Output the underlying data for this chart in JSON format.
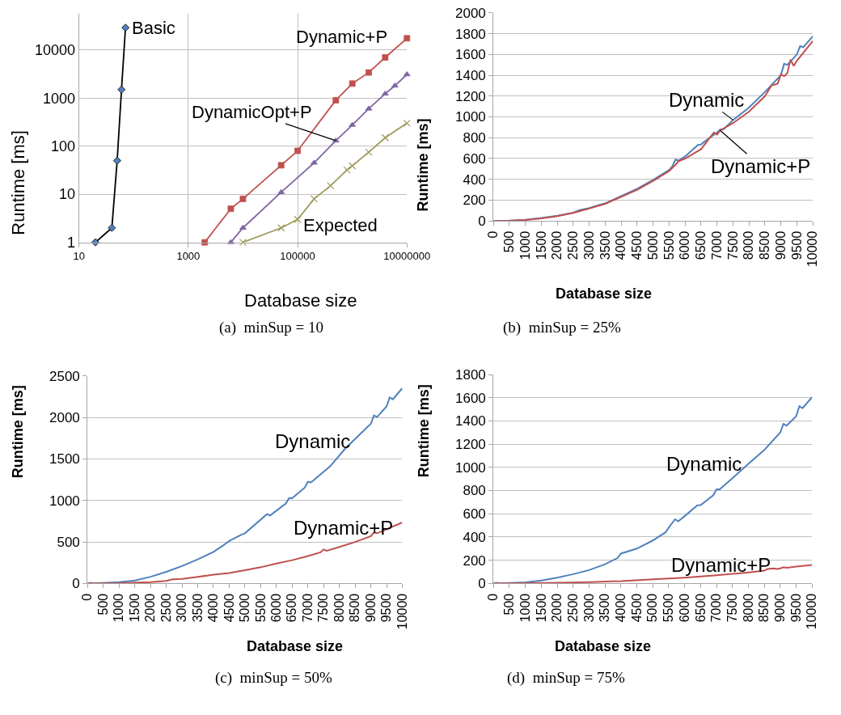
{
  "chart_data": [
    {
      "type": "line",
      "xlabel": "Database size",
      "ylabel": "Runtime [ms]",
      "log": "xy",
      "xlim": [
        10,
        10000000
      ],
      "ylim": [
        1,
        57000
      ],
      "xticks": [
        10,
        1000,
        100000,
        10000000
      ],
      "yticks": [
        1,
        10,
        100,
        1000,
        10000
      ],
      "grid": true,
      "legend": false,
      "annotations": [
        "(a)  minSup = 10"
      ],
      "series": [
        {
          "name": "Basic",
          "color": "#000000",
          "marker": "diamond",
          "x": [
            20,
            40,
            50,
            60,
            71
          ],
          "values": [
            1,
            2,
            50,
            1500,
            29000
          ]
        },
        {
          "name": "Dynamic+P",
          "color": "#c0504d",
          "marker": "square",
          "x": [
            2000,
            6000,
            10000,
            50000,
            100000,
            500000,
            1000000,
            2000000,
            4000000,
            10000000
          ],
          "values": [
            1,
            5,
            8,
            40,
            80,
            900,
            2000,
            3400,
            7000,
            17500
          ]
        },
        {
          "name": "DynamicOpt+P",
          "color": "#8064a2",
          "marker": "triangle",
          "x": [
            6000,
            10000,
            50000,
            200000,
            500000,
            1000000,
            2000000,
            4000000,
            6000000,
            10000000
          ],
          "values": [
            1,
            2,
            11,
            45,
            130,
            275,
            600,
            1230,
            1800,
            3100
          ]
        },
        {
          "name": "Expected",
          "color": "#a0995a",
          "marker": "cross",
          "x": [
            10000,
            50000,
            100000,
            200000,
            400000,
            800000,
            1000000,
            2000000,
            4000000,
            10000000
          ],
          "values": [
            1,
            2,
            3,
            8,
            15,
            32,
            39,
            75,
            150,
            300
          ]
        }
      ]
    },
    {
      "type": "line",
      "xlabel": "Database size",
      "ylabel": "Runtime [ms]",
      "xlim": [
        0,
        10000
      ],
      "ylim": [
        0,
        2000
      ],
      "xticks": [
        0,
        500,
        1000,
        1500,
        2000,
        2500,
        3000,
        3500,
        4000,
        4500,
        5000,
        5500,
        6000,
        6500,
        7000,
        7500,
        8000,
        8500,
        9000,
        9500,
        10000
      ],
      "yticks": [
        0,
        200,
        400,
        600,
        800,
        1000,
        1200,
        1400,
        1600,
        1800,
        2000
      ],
      "grid": "y",
      "legend": false,
      "annotations": [
        "(b)  minSup = 25%"
      ],
      "series": [
        {
          "name": "Dynamic",
          "color": "#4f81bd",
          "x": [
            0,
            500,
            1000,
            1500,
            2000,
            2500,
            2700,
            3000,
            3500,
            4000,
            4500,
            5000,
            5500,
            5600,
            5700,
            5800,
            6000,
            6400,
            6500,
            6600,
            7000,
            7100,
            7200,
            7500,
            8000,
            8500,
            9000,
            9100,
            9200,
            9500,
            9600,
            9700,
            10000
          ],
          "values": [
            0,
            3,
            12,
            28,
            50,
            80,
            105,
            125,
            170,
            240,
            310,
            395,
            490,
            525,
            590,
            580,
            620,
            730,
            735,
            760,
            850,
            880,
            880,
            970,
            1090,
            1240,
            1400,
            1510,
            1500,
            1600,
            1680,
            1670,
            1775
          ]
        },
        {
          "name": "Dynamic+P",
          "color": "#c0504d",
          "x": [
            0,
            500,
            1000,
            1500,
            2000,
            2500,
            3000,
            3500,
            4000,
            4500,
            5000,
            5500,
            5700,
            5800,
            6000,
            6500,
            6900,
            7000,
            7100,
            7500,
            8000,
            8500,
            8700,
            8900,
            9000,
            9100,
            9200,
            9300,
            9400,
            9500,
            10000
          ],
          "values": [
            0,
            2,
            10,
            25,
            47,
            77,
            120,
            165,
            232,
            300,
            385,
            480,
            540,
            575,
            600,
            690,
            850,
            830,
            870,
            940,
            1050,
            1200,
            1300,
            1320,
            1410,
            1390,
            1420,
            1550,
            1490,
            1540,
            1730
          ]
        }
      ]
    },
    {
      "type": "line",
      "xlabel": "Database size",
      "ylabel": "Runtime [ms]",
      "xlim": [
        0,
        10000
      ],
      "ylim": [
        0,
        2500
      ],
      "xticks": [
        0,
        500,
        1000,
        1500,
        2000,
        2500,
        3000,
        3500,
        4000,
        4500,
        5000,
        5500,
        6000,
        6500,
        7000,
        7500,
        8000,
        8500,
        9000,
        9500,
        10000
      ],
      "yticks": [
        0,
        500,
        1000,
        1500,
        2000,
        2500
      ],
      "grid": "y",
      "legend": false,
      "annotations": [
        "(c)  minSup = 50%"
      ],
      "series": [
        {
          "name": "Dynamic",
          "color": "#4f81bd",
          "x": [
            0,
            100,
            200,
            1000,
            1500,
            2000,
            2500,
            3000,
            3500,
            4000,
            4300,
            4500,
            4900,
            5000,
            5700,
            5800,
            6300,
            6400,
            6500,
            6900,
            7000,
            7100,
            7700,
            8200,
            9000,
            9100,
            9200,
            9500,
            9600,
            9700,
            10000
          ],
          "values": [
            0,
            8,
            0,
            15,
            35,
            80,
            140,
            210,
            290,
            380,
            455,
            512,
            590,
            605,
            836,
            820,
            964,
            1027,
            1027,
            1155,
            1225,
            1218,
            1409,
            1632,
            1924,
            2026,
            2007,
            2134,
            2242,
            2220,
            2354
          ]
        },
        {
          "name": "Dynamic+P",
          "color": "#c0504d",
          "x": [
            0,
            1000,
            2000,
            2500,
            2700,
            3000,
            3500,
            4000,
            4500,
            5000,
            5500,
            6000,
            6500,
            7000,
            7400,
            7500,
            7600,
            8000,
            8500,
            9000,
            9100,
            9200,
            10000
          ],
          "values": [
            0,
            3,
            15,
            30,
            50,
            55,
            80,
            105,
            125,
            160,
            195,
            240,
            280,
            330,
            375,
            410,
            395,
            440,
            500,
            570,
            615,
            605,
            735
          ]
        }
      ]
    },
    {
      "type": "line",
      "xlabel": "Database size",
      "ylabel": "Runtime [ms]",
      "xlim": [
        0,
        10000
      ],
      "ylim": [
        0,
        1800
      ],
      "xticks": [
        0,
        500,
        1000,
        1500,
        2000,
        2500,
        3000,
        3500,
        4000,
        4500,
        5000,
        5500,
        6000,
        6500,
        7000,
        7500,
        8000,
        8500,
        9000,
        9500,
        10000
      ],
      "yticks": [
        0,
        200,
        400,
        600,
        800,
        1000,
        1200,
        1400,
        1600,
        1800
      ],
      "grid": "y",
      "legend": false,
      "annotations": [
        "(d)  minSup = 75%"
      ],
      "series": [
        {
          "name": "Dynamic",
          "color": "#4f81bd",
          "x": [
            0,
            100,
            200,
            1000,
            1500,
            2000,
            2500,
            3000,
            3500,
            3900,
            4000,
            4500,
            5000,
            5400,
            5500,
            5700,
            5800,
            6000,
            6400,
            6500,
            6900,
            7000,
            7100,
            7500,
            8000,
            8500,
            9000,
            9100,
            9200,
            9500,
            9600,
            9700,
            10000
          ],
          "values": [
            0,
            5,
            0,
            10,
            25,
            50,
            80,
            115,
            165,
            220,
            257,
            300,
            370,
            440,
            481,
            553,
            535,
            580,
            674,
            675,
            760,
            811,
            810,
            907,
            1030,
            1150,
            1300,
            1374,
            1360,
            1440,
            1527,
            1510,
            1605
          ]
        },
        {
          "name": "Dynamic+P",
          "color": "#c0504d",
          "x": [
            0,
            1000,
            2000,
            3000,
            4000,
            5000,
            6000,
            7000,
            8000,
            8500,
            8600,
            8800,
            8900,
            9000,
            9100,
            9200,
            9500,
            10000
          ],
          "values": [
            0,
            2,
            6,
            12,
            20,
            35,
            50,
            70,
            95,
            110,
            125,
            130,
            125,
            130,
            140,
            135,
            145,
            160
          ]
        }
      ]
    }
  ]
}
